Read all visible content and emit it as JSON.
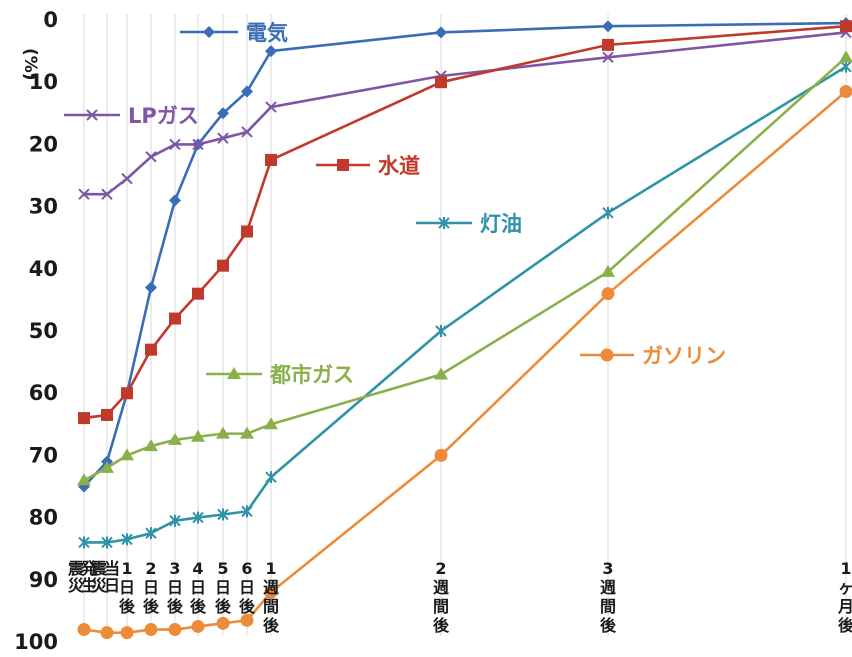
{
  "chart_data": {
    "type": "line",
    "ylabel": "(%)",
    "ylim": [
      0,
      100
    ],
    "y_inverted": true,
    "y_ticks": [
      "0",
      "10",
      "20",
      "30",
      "40",
      "50",
      "60",
      "70",
      "80",
      "90",
      "100"
    ],
    "categories": [
      "震災発生",
      "震災当日",
      "1日後",
      "2日後",
      "3日後",
      "4日後",
      "5日後",
      "6日後",
      "1週間後",
      "2週間後",
      "3週間後",
      "1ヶ月後"
    ],
    "legend_placement": "inline, next to each line",
    "series": [
      {
        "name": "電気",
        "color": "#3a6db5",
        "marker": "diamond",
        "values": [
          75,
          71,
          60,
          43,
          29,
          20,
          15,
          11.5,
          5,
          2,
          1,
          0.5
        ]
      },
      {
        "name": "LPガス",
        "color": "#7f55a6",
        "marker": "x",
        "values": [
          28,
          28,
          25.5,
          22,
          20,
          20,
          19,
          18,
          14,
          9,
          6,
          2
        ]
      },
      {
        "name": "水道",
        "color": "#c0392b",
        "marker": "square",
        "values": [
          64,
          63.5,
          60,
          53,
          48,
          44,
          39.5,
          34,
          22.5,
          10,
          4,
          1
        ]
      },
      {
        "name": "灯油",
        "color": "#2f93a8",
        "marker": "star",
        "values": [
          84,
          84,
          83.5,
          82.5,
          80.5,
          80,
          79.5,
          79,
          73.5,
          50,
          31,
          7.5
        ]
      },
      {
        "name": "都市ガス",
        "color": "#8ab04a",
        "marker": "triangle",
        "values": [
          74,
          72,
          70,
          68.5,
          67.5,
          67,
          66.5,
          66.5,
          65,
          57,
          40.5,
          6
        ]
      },
      {
        "name": "ガソリン",
        "color": "#ec8c3a",
        "marker": "circle",
        "values": [
          98,
          98.5,
          98.5,
          98,
          98,
          97.5,
          97,
          96.5,
          92,
          70,
          44,
          11.5
        ]
      }
    ]
  }
}
